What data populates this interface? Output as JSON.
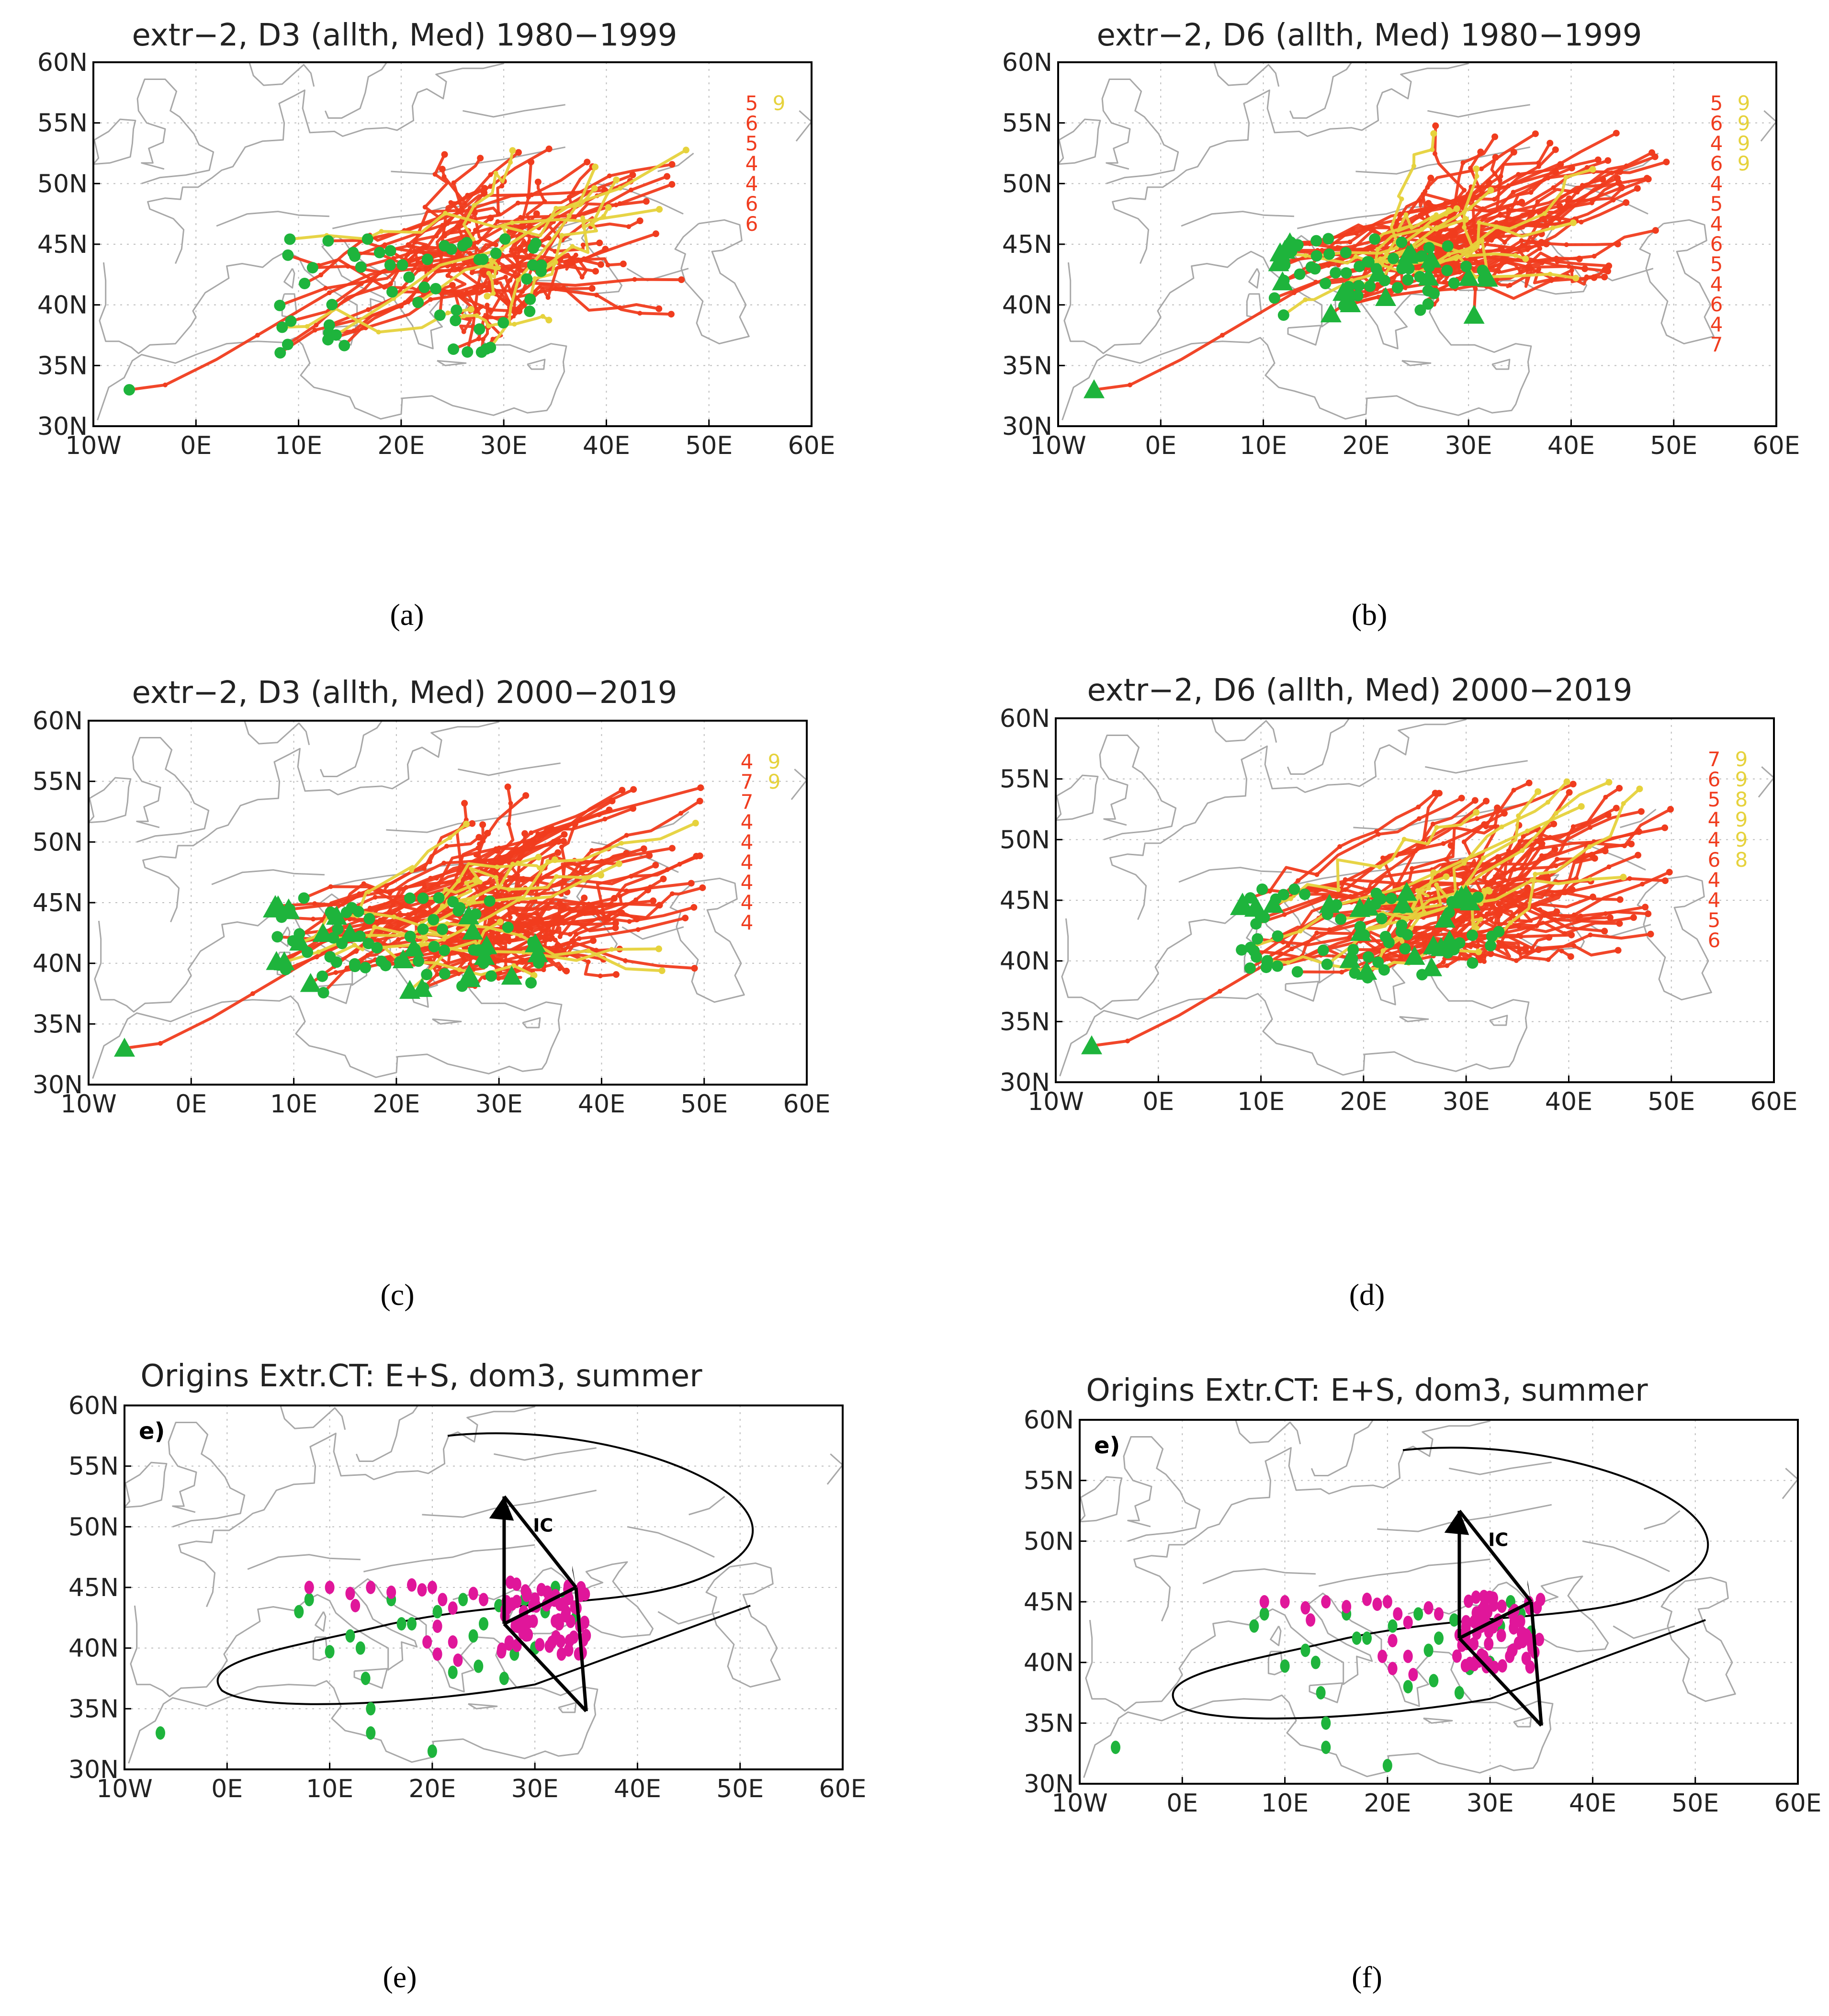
{
  "figure": {
    "colors": {
      "track_red": "#f03c1e",
      "track_yellow": "#e6d23c",
      "marker_green": "#1eb43c",
      "marker_magenta": "#e0169a",
      "coast": "#a8a8a8",
      "grid": "#bdbdbd",
      "frame": "#000000"
    },
    "panels": [
      {
        "id": "a",
        "caption": "(a)",
        "title": "extr−2, D3 (allth, Med) 1980−1999",
        "style": "tracks",
        "x_ticks": [
          "10W",
          "0E",
          "10E",
          "20E",
          "30E",
          "40E",
          "50E",
          "60E"
        ],
        "y_ticks": [
          "30N",
          "35N",
          "40N",
          "45N",
          "50N",
          "55N",
          "60N"
        ],
        "count_labels": [
          {
            "text": "5",
            "color": "red"
          },
          {
            "text": "9",
            "color": "yellow"
          },
          {
            "text": "6",
            "color": "red"
          },
          {
            "text": "5",
            "color": "red"
          },
          {
            "text": "4",
            "color": "red"
          },
          {
            "text": "4",
            "color": "red"
          },
          {
            "text": "6",
            "color": "red"
          },
          {
            "text": "6",
            "color": "red"
          }
        ]
      },
      {
        "id": "b",
        "caption": "(b)",
        "title": "extr−2, D6 (allth, Med) 1980−1999",
        "style": "tracks",
        "x_ticks": [
          "10W",
          "0E",
          "10E",
          "20E",
          "30E",
          "40E",
          "50E",
          "60E"
        ],
        "y_ticks": [
          "30N",
          "35N",
          "40N",
          "45N",
          "50N",
          "55N",
          "60N"
        ],
        "count_labels": [
          {
            "text": "5",
            "color": "red"
          },
          {
            "text": "9",
            "color": "yellow"
          },
          {
            "text": "6",
            "color": "red"
          },
          {
            "text": "9",
            "color": "yellow"
          },
          {
            "text": "4",
            "color": "red"
          },
          {
            "text": "9",
            "color": "yellow"
          },
          {
            "text": "6",
            "color": "red"
          },
          {
            "text": "9",
            "color": "yellow"
          },
          {
            "text": "4",
            "color": "red"
          },
          {
            "text": "5",
            "color": "red"
          },
          {
            "text": "4",
            "color": "red"
          },
          {
            "text": "6",
            "color": "red"
          },
          {
            "text": "5",
            "color": "red"
          },
          {
            "text": "4",
            "color": "red"
          },
          {
            "text": "6",
            "color": "red"
          },
          {
            "text": "4",
            "color": "red"
          },
          {
            "text": "7",
            "color": "red"
          }
        ]
      },
      {
        "id": "c",
        "caption": "(c)",
        "title": "extr−2, D3 (allth, Med) 2000−2019",
        "style": "tracks",
        "x_ticks": [
          "10W",
          "0E",
          "10E",
          "20E",
          "30E",
          "40E",
          "50E",
          "60E"
        ],
        "y_ticks": [
          "30N",
          "35N",
          "40N",
          "45N",
          "50N",
          "55N",
          "60N"
        ],
        "count_labels": [
          {
            "text": "4",
            "color": "red"
          },
          {
            "text": "9",
            "color": "yellow"
          },
          {
            "text": "7",
            "color": "red"
          },
          {
            "text": "9",
            "color": "yellow"
          },
          {
            "text": "7",
            "color": "red"
          },
          {
            "text": "4",
            "color": "red"
          },
          {
            "text": "4",
            "color": "red"
          },
          {
            "text": "4",
            "color": "red"
          },
          {
            "text": "4",
            "color": "red"
          },
          {
            "text": "4",
            "color": "red"
          },
          {
            "text": "4",
            "color": "red"
          }
        ]
      },
      {
        "id": "d",
        "caption": "(d)",
        "title": "extr−2, D6 (allth, Med) 2000−2019",
        "style": "tracks",
        "x_ticks": [
          "10W",
          "0E",
          "10E",
          "20E",
          "30E",
          "40E",
          "50E",
          "60E"
        ],
        "y_ticks": [
          "30N",
          "35N",
          "40N",
          "45N",
          "50N",
          "55N",
          "60N"
        ],
        "count_labels": [
          {
            "text": "7",
            "color": "red"
          },
          {
            "text": "9",
            "color": "yellow"
          },
          {
            "text": "6",
            "color": "red"
          },
          {
            "text": "9",
            "color": "yellow"
          },
          {
            "text": "5",
            "color": "red"
          },
          {
            "text": "8",
            "color": "yellow"
          },
          {
            "text": "4",
            "color": "red"
          },
          {
            "text": "9",
            "color": "yellow"
          },
          {
            "text": "4",
            "color": "red"
          },
          {
            "text": "9",
            "color": "yellow"
          },
          {
            "text": "6",
            "color": "red"
          },
          {
            "text": "8",
            "color": "yellow"
          },
          {
            "text": "4",
            "color": "red"
          },
          {
            "text": "4",
            "color": "red"
          },
          {
            "text": "5",
            "color": "red"
          },
          {
            "text": "6",
            "color": "red"
          }
        ]
      },
      {
        "id": "e",
        "caption": "(e)",
        "title": "Origins Extr.CT: E+S, dom3, summer",
        "style": "origins",
        "corner_label": "e)",
        "arrow_label": "IC",
        "x_ticks": [
          "10W",
          "0E",
          "10E",
          "20E",
          "30E",
          "40E",
          "50E",
          "60E"
        ],
        "y_ticks": [
          "30N",
          "35N",
          "40N",
          "45N",
          "50N",
          "55N",
          "60N"
        ]
      },
      {
        "id": "f",
        "caption": "(f)",
        "title": "Origins Extr.CT: E+S, dom3, summer",
        "style": "origins",
        "corner_label": "e)",
        "arrow_label": "IC",
        "x_ticks": [
          "10W",
          "0E",
          "10E",
          "20E",
          "30E",
          "40E",
          "50E",
          "60E"
        ],
        "y_ticks": [
          "30N",
          "35N",
          "40N",
          "45N",
          "50N",
          "55N",
          "60N"
        ]
      }
    ]
  }
}
